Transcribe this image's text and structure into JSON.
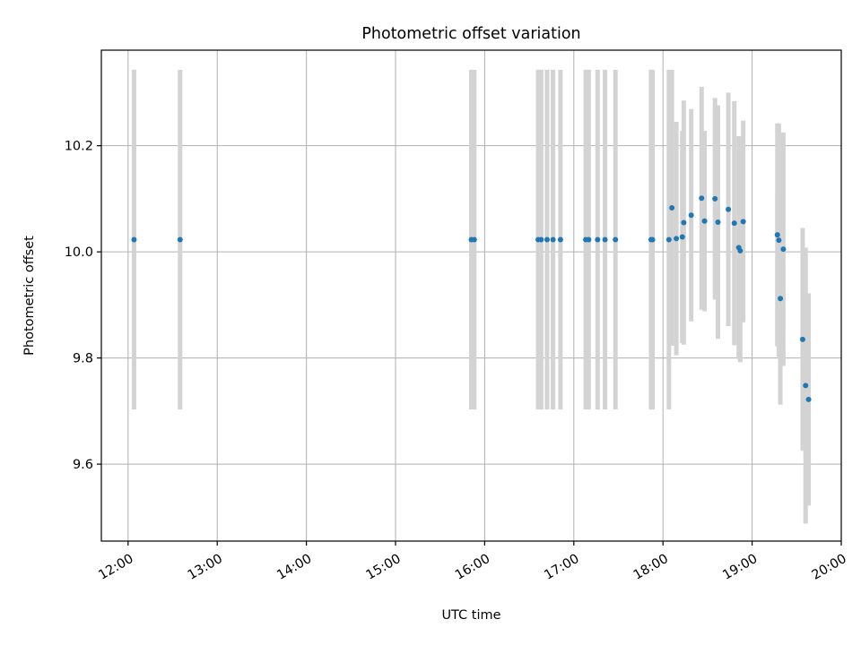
{
  "chart_data": {
    "type": "scatter",
    "title": "Photometric offset variation",
    "xlabel": "UTC time",
    "ylabel": "Photometric offset",
    "xlim": [
      "11:42",
      "20:00"
    ],
    "ylim": [
      9.455,
      10.38
    ],
    "x_ticks": [
      "12:00",
      "13:00",
      "14:00",
      "15:00",
      "16:00",
      "17:00",
      "18:00",
      "19:00",
      "20:00"
    ],
    "y_ticks": [
      9.6,
      9.8,
      10.0,
      10.2
    ],
    "grid": true,
    "colors": {
      "point": "#1f77b4",
      "errorbar": "#d3d3d3"
    },
    "points": [
      {
        "t": "12:04",
        "y": 10.023,
        "err": 0.32
      },
      {
        "t": "12:35",
        "y": 10.023,
        "err": 0.32
      },
      {
        "t": "15:51",
        "y": 10.023,
        "err": 0.32
      },
      {
        "t": "15:53",
        "y": 10.023,
        "err": 0.32
      },
      {
        "t": "16:36",
        "y": 10.023,
        "err": 0.32
      },
      {
        "t": "16:38",
        "y": 10.023,
        "err": 0.32
      },
      {
        "t": "16:42",
        "y": 10.023,
        "err": 0.32
      },
      {
        "t": "16:46",
        "y": 10.023,
        "err": 0.32
      },
      {
        "t": "16:51",
        "y": 10.023,
        "err": 0.32
      },
      {
        "t": "17:08",
        "y": 10.023,
        "err": 0.32
      },
      {
        "t": "17:10",
        "y": 10.023,
        "err": 0.32
      },
      {
        "t": "17:16",
        "y": 10.023,
        "err": 0.32
      },
      {
        "t": "17:21",
        "y": 10.023,
        "err": 0.32
      },
      {
        "t": "17:28",
        "y": 10.023,
        "err": 0.32
      },
      {
        "t": "17:52",
        "y": 10.023,
        "err": 0.32
      },
      {
        "t": "17:53",
        "y": 10.023,
        "err": 0.32
      },
      {
        "t": "18:04",
        "y": 10.023,
        "err": 0.32
      },
      {
        "t": "18:06",
        "y": 10.083,
        "err": 0.26
      },
      {
        "t": "18:09",
        "y": 10.025,
        "err": 0.22
      },
      {
        "t": "18:13",
        "y": 10.028,
        "err": 0.2
      },
      {
        "t": "18:14",
        "y": 10.055,
        "err": 0.23
      },
      {
        "t": "18:19",
        "y": 10.069,
        "err": 0.2
      },
      {
        "t": "18:26",
        "y": 10.101,
        "err": 0.21
      },
      {
        "t": "18:28",
        "y": 10.058,
        "err": 0.17
      },
      {
        "t": "18:35",
        "y": 10.1,
        "err": 0.19
      },
      {
        "t": "18:37",
        "y": 10.056,
        "err": 0.22
      },
      {
        "t": "18:44",
        "y": 10.08,
        "err": 0.22
      },
      {
        "t": "18:48",
        "y": 10.054,
        "err": 0.23
      },
      {
        "t": "18:51",
        "y": 10.008,
        "err": 0.21
      },
      {
        "t": "18:52",
        "y": 10.002,
        "err": 0.21
      },
      {
        "t": "18:54",
        "y": 10.057,
        "err": 0.19
      },
      {
        "t": "19:17",
        "y": 10.032,
        "err": 0.21
      },
      {
        "t": "19:18",
        "y": 10.022,
        "err": 0.22
      },
      {
        "t": "19:19",
        "y": 9.912,
        "err": 0.2
      },
      {
        "t": "19:21",
        "y": 10.005,
        "err": 0.22
      },
      {
        "t": "19:34",
        "y": 9.835,
        "err": 0.21
      },
      {
        "t": "19:36",
        "y": 9.748,
        "err": 0.26
      },
      {
        "t": "19:38",
        "y": 9.722,
        "err": 0.2
      }
    ]
  }
}
